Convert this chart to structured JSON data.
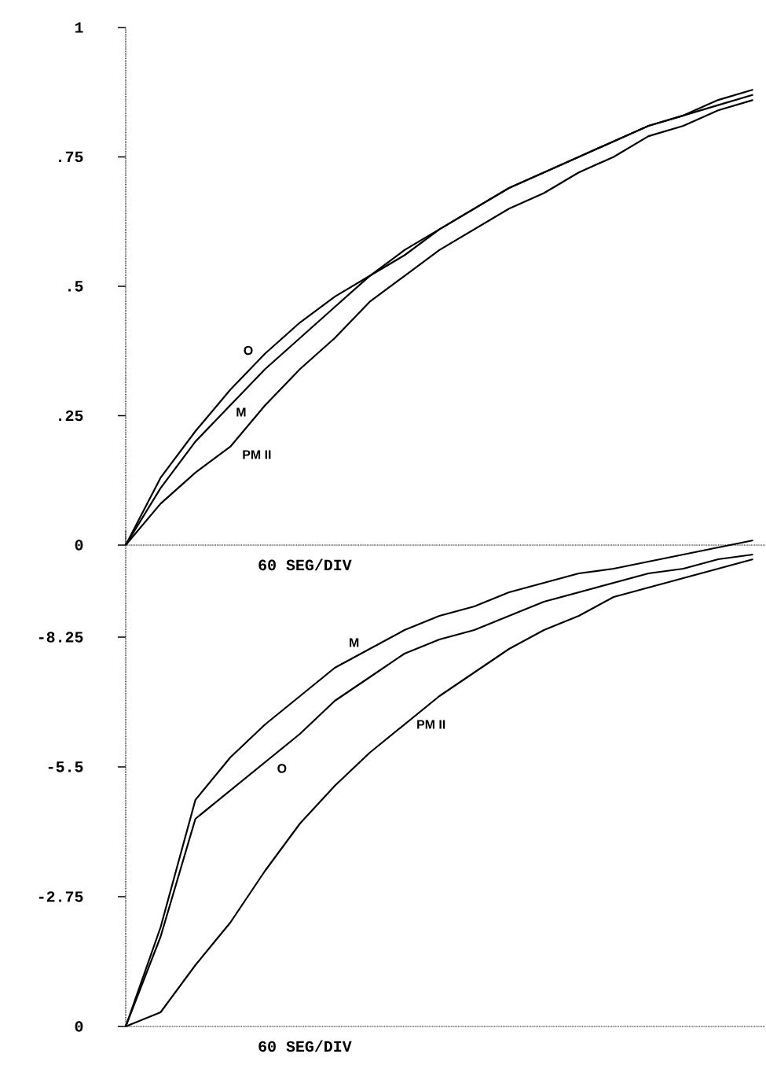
{
  "chart_data": [
    {
      "type": "line",
      "xlabel": "60  SEG/DIV",
      "categories": [
        null,
        null,
        null,
        null,
        null,
        null,
        null,
        null,
        null,
        null,
        null,
        null,
        null,
        null,
        null,
        null,
        null,
        null,
        null
      ],
      "ylim": [
        0,
        1
      ],
      "yticks": [
        {
          "value": 0,
          "label": "0"
        },
        {
          "value": 0.25,
          "label": ".25"
        },
        {
          "value": 0.5,
          "label": ".5"
        },
        {
          "value": 0.75,
          "label": ".75"
        },
        {
          "value": 1,
          "label": "1"
        }
      ],
      "grid": false,
      "legend": false,
      "line_style": "solid",
      "marker": "none",
      "series": [
        {
          "name": "O",
          "color": "#000000",
          "values": [
            0,
            0.13,
            0.22,
            0.3,
            0.37,
            0.43,
            0.48,
            0.52,
            0.56,
            0.61,
            0.65,
            0.69,
            0.72,
            0.75,
            0.78,
            0.81,
            0.83,
            0.86,
            0.88
          ]
        },
        {
          "name": "M",
          "color": "#000000",
          "values": [
            0,
            0.11,
            0.2,
            0.27,
            0.34,
            0.4,
            0.46,
            0.52,
            0.57,
            0.61,
            0.65,
            0.69,
            0.72,
            0.75,
            0.78,
            0.81,
            0.83,
            0.85,
            0.87
          ]
        },
        {
          "name": "PM  II",
          "color": "#000000",
          "values": [
            0,
            0.08,
            0.14,
            0.19,
            0.27,
            0.34,
            0.4,
            0.47,
            0.52,
            0.57,
            0.61,
            0.65,
            0.68,
            0.72,
            0.75,
            0.79,
            0.81,
            0.84,
            0.86
          ]
        }
      ]
    },
    {
      "type": "line",
      "xlabel": "60  SEG/DIV",
      "categories": [
        null,
        null,
        null,
        null,
        null,
        null,
        null,
        null,
        null,
        null,
        null,
        null,
        null,
        null,
        null,
        null,
        null,
        null,
        null
      ],
      "ylim": [
        0,
        -10.5
      ],
      "yticks": [
        {
          "value": 0,
          "label": "0"
        },
        {
          "value": -2.75,
          "label": "-2.75"
        },
        {
          "value": -5.5,
          "label": "-5.5"
        },
        {
          "value": -8.25,
          "label": "-8.25"
        }
      ],
      "grid": false,
      "legend": false,
      "line_style": "solid",
      "marker": "none",
      "series": [
        {
          "name": "M",
          "color": "#000000",
          "values": [
            0,
            -2.1,
            -4.8,
            -5.7,
            -6.4,
            -7.0,
            -7.6,
            -8.0,
            -8.4,
            -8.7,
            -8.9,
            -9.2,
            -9.4,
            -9.6,
            -9.7,
            -9.85,
            -10.0,
            -10.15,
            -10.3
          ]
        },
        {
          "name": "O",
          "color": "#000000",
          "values": [
            0,
            -1.9,
            -4.4,
            -5.0,
            -5.6,
            -6.2,
            -6.9,
            -7.4,
            -7.9,
            -8.2,
            -8.4,
            -8.7,
            -9.0,
            -9.2,
            -9.4,
            -9.6,
            -9.7,
            -9.9,
            -10.0
          ]
        },
        {
          "name": "PM  II",
          "color": "#000000",
          "values": [
            0,
            -0.3,
            -1.3,
            -2.2,
            -3.3,
            -4.3,
            -5.1,
            -5.8,
            -6.4,
            -7.0,
            -7.5,
            -8.0,
            -8.4,
            -8.7,
            -9.1,
            -9.3,
            -9.5,
            -9.7,
            -9.9
          ]
        }
      ]
    }
  ]
}
